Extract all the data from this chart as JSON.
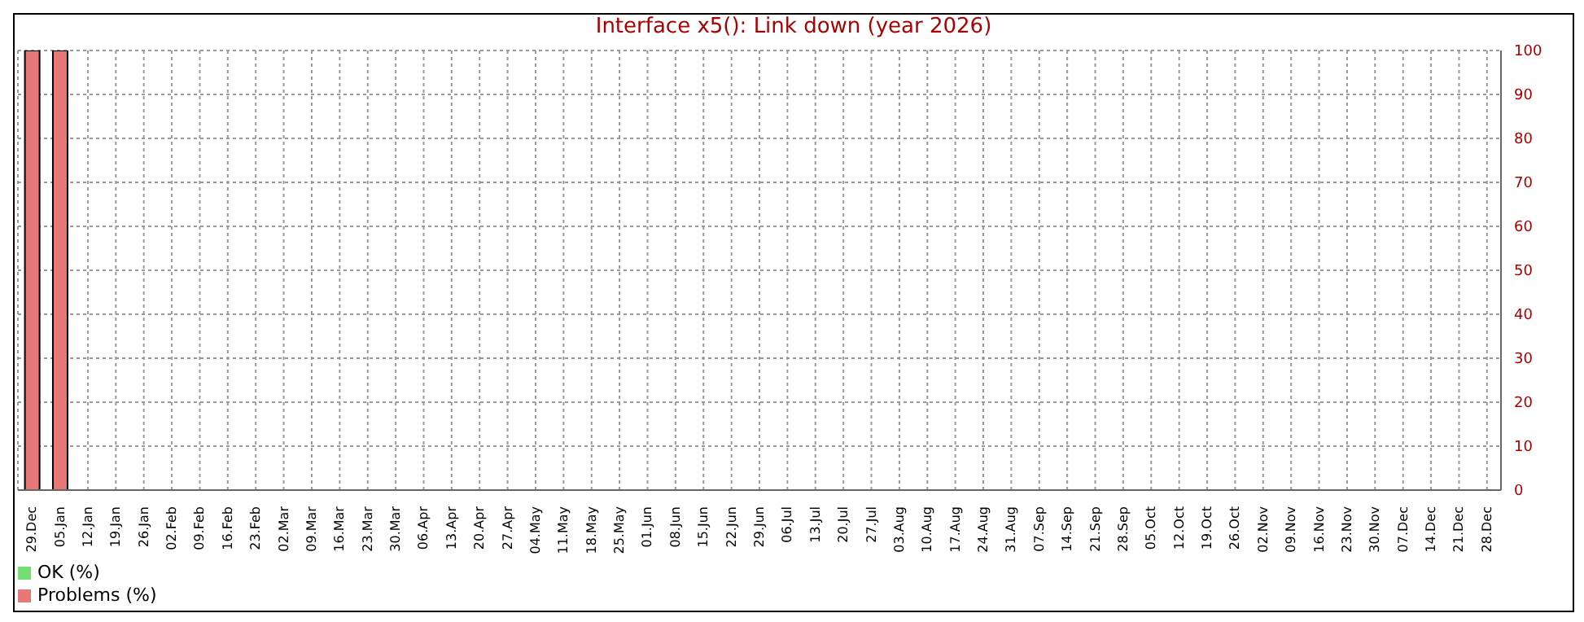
{
  "chart_data": {
    "type": "bar",
    "title": "Interface x5(): Link down (year 2026)",
    "stacked": true,
    "categories": [
      "29.Dec",
      "05.Jan",
      "12.Jan",
      "19.Jan",
      "26.Jan",
      "02.Feb",
      "09.Feb",
      "16.Feb",
      "23.Feb",
      "02.Mar",
      "09.Mar",
      "16.Mar",
      "23.Mar",
      "30.Mar",
      "06.Apr",
      "13.Apr",
      "20.Apr",
      "27.Apr",
      "04.May",
      "11.May",
      "18.May",
      "25.May",
      "01.Jun",
      "08.Jun",
      "15.Jun",
      "22.Jun",
      "29.Jun",
      "06.Jul",
      "13.Jul",
      "20.Jul",
      "27.Jul",
      "03.Aug",
      "10.Aug",
      "17.Aug",
      "24.Aug",
      "31.Aug",
      "07.Sep",
      "14.Sep",
      "21.Sep",
      "28.Sep",
      "05.Oct",
      "12.Oct",
      "19.Oct",
      "26.Oct",
      "02.Nov",
      "09.Nov",
      "16.Nov",
      "23.Nov",
      "30.Nov",
      "07.Dec",
      "14.Dec",
      "21.Dec",
      "28.Dec"
    ],
    "series": [
      {
        "name": "OK (%)",
        "color": "#77dd77",
        "values": [
          0,
          0,
          null,
          null,
          null,
          null,
          null,
          null,
          null,
          null,
          null,
          null,
          null,
          null,
          null,
          null,
          null,
          null,
          null,
          null,
          null,
          null,
          null,
          null,
          null,
          null,
          null,
          null,
          null,
          null,
          null,
          null,
          null,
          null,
          null,
          null,
          null,
          null,
          null,
          null,
          null,
          null,
          null,
          null,
          null,
          null,
          null,
          null,
          null,
          null,
          null,
          null,
          null
        ]
      },
      {
        "name": "Problems (%)",
        "color": "#e87878",
        "values": [
          100,
          100,
          null,
          null,
          null,
          null,
          null,
          null,
          null,
          null,
          null,
          null,
          null,
          null,
          null,
          null,
          null,
          null,
          null,
          null,
          null,
          null,
          null,
          null,
          null,
          null,
          null,
          null,
          null,
          null,
          null,
          null,
          null,
          null,
          null,
          null,
          null,
          null,
          null,
          null,
          null,
          null,
          null,
          null,
          null,
          null,
          null,
          null,
          null,
          null,
          null,
          null,
          null
        ]
      }
    ],
    "ylim": [
      0,
      100
    ],
    "yticks": [
      0,
      10,
      20,
      30,
      40,
      50,
      60,
      70,
      80,
      90,
      100
    ],
    "grid": true,
    "legend": "bottom left"
  }
}
